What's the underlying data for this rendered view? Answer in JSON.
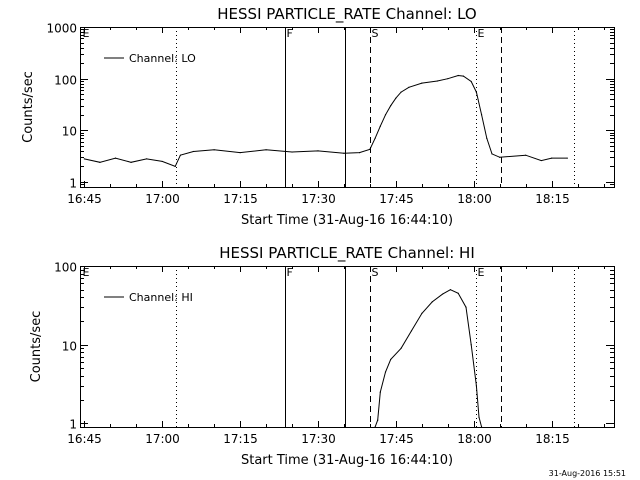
{
  "chart_data": [
    {
      "type": "line",
      "title": "HESSI PARTICLE_RATE Channel: LO",
      "xlabel": "Start Time (31-Aug-16 16:44:10)",
      "ylabel": "Counts/sec",
      "yscale": "log",
      "xlim": [
        "16:44:10",
        "18:27:00"
      ],
      "ylim": [
        0.8,
        1000
      ],
      "xticks": [
        "16:45",
        "17:00",
        "17:15",
        "17:30",
        "17:45",
        "18:00",
        "18:15"
      ],
      "yticks": [
        {
          "v": 1,
          "label": "1"
        },
        {
          "v": 10,
          "label": "10"
        },
        {
          "v": 100,
          "label": "100"
        },
        {
          "v": 1000,
          "label": "1000"
        }
      ],
      "legend": {
        "label": "Channel: LO",
        "position": "top-left"
      },
      "markers": [
        {
          "label": "E",
          "time": "16:44:10",
          "style": "dotted",
          "show_line": false
        },
        {
          "label": "",
          "time": "17:02:40",
          "style": "dotted",
          "show_line": true
        },
        {
          "label": "F",
          "time": "17:23:40",
          "style": "solid",
          "show_line": true
        },
        {
          "label": "",
          "time": "17:35:10",
          "style": "solid",
          "show_line": true
        },
        {
          "label": "S",
          "time": "17:40:00",
          "style": "dashed",
          "show_line": true
        },
        {
          "label": "E",
          "time": "18:00:30",
          "style": "dotted",
          "show_line": true
        },
        {
          "label": "",
          "time": "18:05:20",
          "style": "dashed",
          "show_line": true
        },
        {
          "label": "",
          "time": "18:19:20",
          "style": "dotted",
          "show_line": true
        }
      ],
      "series": [
        {
          "name": "Channel: LO",
          "points": [
            [
              "16:45:00",
              2.8
            ],
            [
              "16:48:00",
              2.4
            ],
            [
              "16:51:00",
              2.9
            ],
            [
              "16:54:00",
              2.4
            ],
            [
              "16:57:00",
              2.8
            ],
            [
              "17:00:00",
              2.5
            ],
            [
              "17:02:30",
              2.0
            ],
            [
              "17:03:30",
              3.3
            ],
            [
              "17:06:00",
              3.9
            ],
            [
              "17:10:00",
              4.2
            ],
            [
              "17:15:00",
              3.7
            ],
            [
              "17:20:00",
              4.2
            ],
            [
              "17:25:00",
              3.8
            ],
            [
              "17:30:00",
              4.0
            ],
            [
              "17:35:00",
              3.6
            ],
            [
              "17:38:00",
              3.7
            ],
            [
              "17:40:00",
              4.3
            ],
            [
              "17:41:00",
              7
            ],
            [
              "17:42:00",
              12
            ],
            [
              "17:43:00",
              20
            ],
            [
              "17:44:00",
              30
            ],
            [
              "17:45:00",
              42
            ],
            [
              "17:46:00",
              55
            ],
            [
              "17:47:30",
              68
            ],
            [
              "17:50:00",
              82
            ],
            [
              "17:53:00",
              90
            ],
            [
              "17:55:00",
              100
            ],
            [
              "17:57:00",
              115
            ],
            [
              "17:58:00",
              112
            ],
            [
              "17:59:30",
              88
            ],
            [
              "18:00:30",
              55
            ],
            [
              "18:01:30",
              20
            ],
            [
              "18:02:30",
              7
            ],
            [
              "18:03:30",
              3.5
            ],
            [
              "18:05:00",
              3.0
            ],
            [
              "18:10:00",
              3.3
            ],
            [
              "18:13:00",
              2.6
            ],
            [
              "18:15:00",
              2.9
            ],
            [
              "18:18:00",
              2.9
            ]
          ]
        }
      ]
    },
    {
      "type": "line",
      "title": "HESSI PARTICLE_RATE Channel: HI",
      "xlabel": "Start Time (31-Aug-16 16:44:10)",
      "ylabel": "Counts/sec",
      "yscale": "log",
      "xlim": [
        "16:44:10",
        "18:27:00"
      ],
      "ylim": [
        0.9,
        100
      ],
      "xticks": [
        "16:45",
        "17:00",
        "17:15",
        "17:30",
        "17:45",
        "18:00",
        "18:15"
      ],
      "yticks": [
        {
          "v": 1,
          "label": "1"
        },
        {
          "v": 10,
          "label": "10"
        },
        {
          "v": 100,
          "label": "100"
        }
      ],
      "legend": {
        "label": "Channel: HI",
        "position": "top-left"
      },
      "markers": [
        {
          "label": "E",
          "time": "16:44:10",
          "style": "dotted",
          "show_line": false
        },
        {
          "label": "",
          "time": "17:02:40",
          "style": "dotted",
          "show_line": true
        },
        {
          "label": "F",
          "time": "17:23:40",
          "style": "solid",
          "show_line": true
        },
        {
          "label": "",
          "time": "17:35:10",
          "style": "solid",
          "show_line": true
        },
        {
          "label": "S",
          "time": "17:40:00",
          "style": "dashed",
          "show_line": true
        },
        {
          "label": "E",
          "time": "18:00:30",
          "style": "dotted",
          "show_line": true
        },
        {
          "label": "",
          "time": "18:05:20",
          "style": "dashed",
          "show_line": true
        },
        {
          "label": "",
          "time": "18:19:20",
          "style": "dotted",
          "show_line": true
        }
      ],
      "series": [
        {
          "name": "Channel: HI",
          "points": [
            [
              "17:41:00",
              0.9
            ],
            [
              "17:41:30",
              1.1
            ],
            [
              "17:42:00",
              2.5
            ],
            [
              "17:43:00",
              4.5
            ],
            [
              "17:44:00",
              6.5
            ],
            [
              "17:46:00",
              9
            ],
            [
              "17:48:00",
              15
            ],
            [
              "17:50:00",
              25
            ],
            [
              "17:52:00",
              35
            ],
            [
              "17:54:00",
              44
            ],
            [
              "17:55:30",
              50
            ],
            [
              "17:57:00",
              45
            ],
            [
              "17:58:30",
              30
            ],
            [
              "17:59:30",
              10
            ],
            [
              "18:00:30",
              3
            ],
            [
              "18:01:00",
              1.2
            ],
            [
              "18:01:30",
              0.9
            ]
          ]
        }
      ]
    }
  ],
  "footer": {
    "timestamp": "31-Aug-2016 15:51"
  }
}
